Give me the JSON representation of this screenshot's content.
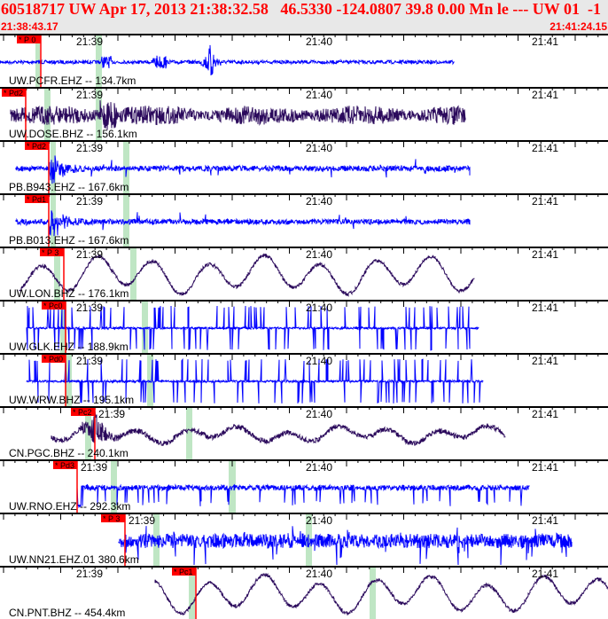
{
  "header": {
    "title": "60518717 UW Apr 17, 2013 21:38:32.58   46.5330 -124.0807 39.8 0.00 Mn le --- UW 01  -1",
    "start_time": "21:38:43.17",
    "end_time": "21:41:24.15"
  },
  "time_labels": [
    "21:39",
    "21:40",
    "21:41"
  ],
  "colors": {
    "header_text": "#ff0000",
    "header_bg": "#e8e8e8",
    "pick": "#ff0000",
    "band": "#bfe6c4",
    "trace_blue": "#0000ff",
    "trace_purple": "#2b0a5c"
  },
  "traces": [
    {
      "label": "UW.PCFR.EHZ -- 134.7km",
      "pick": "* P 0",
      "color": "trace_blue"
    },
    {
      "label": "UW.DOSE.BHZ -- 156.1km",
      "pick": "* Pd2",
      "color": "trace_purple"
    },
    {
      "label": "PB.B943.EHZ -- 167.6km",
      "pick": "* Pd2",
      "color": "trace_blue"
    },
    {
      "label": "PB.B013.EHZ -- 167.6km",
      "pick": "* Pd1",
      "color": "trace_blue"
    },
    {
      "label": "UW.LON.BHZ -- 176.1km",
      "pick": "* P 3",
      "color": "trace_purple"
    },
    {
      "label": "UW.GLK.EHZ -- 188.9km",
      "pick": "* Pc0",
      "color": "trace_blue"
    },
    {
      "label": "UW.WRW.BHZ -- 195.1km",
      "pick": "* Pd0",
      "color": "trace_blue"
    },
    {
      "label": "CN.PGC.BHZ -- 240.1km",
      "pick": "* Pc2",
      "color": "trace_purple"
    },
    {
      "label": "UW.RNO.EHZ -- 292.3km",
      "pick": "* Pd3",
      "color": "trace_blue"
    },
    {
      "label": "UW.NN21.EHZ.01 380.6km",
      "pick": "* P 3",
      "color": "trace_blue"
    },
    {
      "label": "CN.PNT.BHZ -- 454.4km",
      "pick": "* Pc1",
      "color": "trace_purple"
    }
  ]
}
